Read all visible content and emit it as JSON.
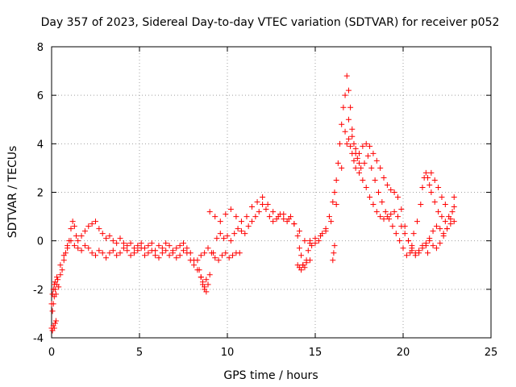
{
  "chart_data": {
    "type": "scatter",
    "title": "Day 357 of 2023, Sidereal Day-to-day VTEC variation (SDTVAR) for receiver p052",
    "xlabel": "GPS time / hours",
    "ylabel": "SDTVAR / TECUs",
    "xlim": [
      0,
      25
    ],
    "ylim": [
      -4,
      8
    ],
    "xticks": [
      0,
      5,
      10,
      15,
      20,
      25
    ],
    "yticks": [
      -4,
      -2,
      0,
      2,
      4,
      6,
      8
    ],
    "grid": true,
    "marker": "+",
    "series": [
      {
        "name": "SDTVAR",
        "color": "#ff0000",
        "x": [
          0.0,
          0.05,
          0.1,
          0.15,
          0.2,
          0.25,
          0.3,
          0.35,
          0.4,
          0.5,
          0.6,
          0.7,
          0.8,
          0.9,
          1.0,
          1.1,
          1.2,
          1.3,
          1.4,
          1.5,
          1.7,
          1.9,
          2.1,
          2.3,
          2.5,
          2.7,
          2.9,
          3.1,
          3.3,
          3.5,
          3.7,
          3.9,
          4.1,
          4.3,
          4.5,
          4.7,
          4.9,
          5.1,
          5.3,
          5.5,
          5.7,
          5.9,
          6.1,
          6.3,
          6.5,
          6.7,
          6.9,
          7.1,
          7.3,
          7.5,
          7.7,
          7.9,
          8.1,
          8.3,
          8.5,
          8.6,
          8.7,
          8.8,
          8.9,
          9.0,
          9.2,
          9.4,
          9.6,
          9.8,
          10.0,
          10.2,
          10.4,
          10.6,
          10.8,
          11.0,
          11.2,
          11.4,
          11.6,
          11.8,
          12.0,
          12.2,
          12.4,
          12.6,
          12.8,
          13.0,
          13.2,
          13.4,
          13.6,
          13.8,
          14.0,
          14.1,
          14.2,
          14.3,
          14.4,
          14.5,
          14.6,
          14.7,
          14.8,
          15.0,
          15.2,
          15.4,
          15.6,
          15.8,
          16.0,
          16.1,
          16.2,
          16.3,
          16.4,
          16.5,
          16.6,
          16.7,
          16.8,
          16.9,
          17.0,
          17.1,
          17.2,
          17.3,
          17.4,
          17.5,
          17.6,
          17.8,
          18.0,
          18.2,
          18.4,
          18.6,
          18.8,
          19.0,
          19.2,
          19.4,
          19.6,
          19.8,
          20.0,
          20.2,
          20.4,
          20.5,
          20.6,
          20.8,
          21.0,
          21.1,
          21.2,
          21.3,
          21.4,
          21.5,
          21.6,
          21.8,
          22.0,
          22.2,
          22.4,
          22.6,
          22.8,
          22.9,
          0.05,
          0.1,
          0.15,
          0.2,
          0.3,
          0.5,
          0.7,
          0.9,
          1.1,
          1.3,
          1.5,
          1.7,
          1.9,
          2.1,
          2.3,
          2.5,
          2.7,
          2.9,
          3.1,
          3.3,
          3.5,
          3.7,
          3.9,
          4.1,
          4.3,
          4.5,
          4.7,
          4.9,
          5.1,
          5.3,
          5.5,
          5.7,
          5.9,
          6.1,
          6.3,
          6.5,
          6.7,
          6.9,
          7.1,
          7.3,
          7.5,
          7.7,
          7.9,
          8.1,
          8.3,
          8.5,
          8.7,
          8.9,
          9.1,
          9.3,
          9.5,
          9.7,
          9.9,
          10.1,
          10.3,
          10.5,
          10.7,
          9.0,
          9.3,
          9.6,
          9.9,
          10.2,
          10.5,
          10.8,
          11.1,
          11.4,
          11.7,
          12.0,
          12.3,
          12.6,
          12.9,
          13.2,
          13.5,
          13.8,
          14.1,
          14.4,
          14.7,
          15.0,
          15.3,
          15.6,
          15.9,
          16.2,
          16.5,
          16.7,
          16.9,
          17.1,
          17.3,
          17.5,
          17.7,
          17.9,
          18.1,
          18.3,
          18.5,
          18.7,
          18.9,
          19.1,
          19.3,
          19.5,
          19.7,
          19.9,
          20.1,
          20.3,
          20.5,
          20.7,
          20.9,
          21.1,
          21.3,
          21.5,
          21.7,
          21.9,
          22.1,
          22.3,
          22.5,
          22.7,
          22.9,
          16.8,
          16.9,
          17.0,
          17.1,
          17.2,
          17.3,
          17.5,
          17.7,
          17.9,
          18.1,
          18.3,
          18.5,
          18.7,
          18.9,
          19.1,
          19.3,
          19.5,
          19.7,
          19.9,
          20.1,
          20.3,
          20.5,
          20.7,
          20.9,
          21.1,
          21.3,
          21.5,
          21.7,
          21.9,
          22.1,
          22.3,
          22.5,
          22.7,
          22.9,
          16.0,
          16.05,
          16.1,
          8.4,
          8.5,
          8.6,
          8.7,
          8.8,
          0.0,
          0.05,
          0.1,
          0.15,
          0.2,
          0.25,
          14.0,
          14.1,
          14.2,
          14.3,
          14.5,
          14.7,
          21.4,
          21.6,
          21.8,
          22.0,
          22.2,
          22.4
        ],
        "y": [
          -2.6,
          -2.9,
          -2.6,
          -2.3,
          -2.0,
          -2.2,
          -1.8,
          -1.6,
          -1.9,
          -1.4,
          -1.2,
          -0.8,
          -0.5,
          -0.2,
          0.0,
          0.5,
          0.8,
          0.6,
          0.2,
          0.0,
          0.2,
          0.4,
          0.6,
          0.7,
          0.8,
          0.5,
          0.3,
          0.1,
          0.2,
          0.0,
          -0.1,
          0.1,
          -0.1,
          -0.2,
          -0.1,
          -0.3,
          -0.2,
          -0.1,
          -0.3,
          -0.2,
          -0.1,
          -0.4,
          -0.2,
          -0.3,
          -0.1,
          -0.2,
          -0.4,
          -0.3,
          -0.2,
          -0.1,
          -0.3,
          -0.5,
          -0.8,
          -1.2,
          -1.5,
          -1.7,
          -1.9,
          -2.1,
          -1.8,
          -1.4,
          -0.5,
          0.1,
          0.3,
          0.1,
          0.2,
          0.0,
          0.3,
          0.5,
          0.4,
          0.3,
          0.6,
          0.8,
          1.0,
          1.2,
          1.5,
          1.3,
          1.0,
          0.8,
          0.9,
          1.1,
          0.9,
          0.8,
          1.0,
          0.7,
          0.2,
          -0.3,
          -0.6,
          -1.0,
          -1.1,
          -0.8,
          -0.4,
          0.0,
          -0.2,
          -0.1,
          0.0,
          0.3,
          0.5,
          1.0,
          1.6,
          2.0,
          2.5,
          3.2,
          4.0,
          4.8,
          5.5,
          6.0,
          6.8,
          6.2,
          5.5,
          4.6,
          4.0,
          3.6,
          3.4,
          3.2,
          3.0,
          3.2,
          3.5,
          3.0,
          2.5,
          2.0,
          1.6,
          1.2,
          0.9,
          0.6,
          0.3,
          0.0,
          -0.3,
          -0.6,
          -0.5,
          -0.2,
          0.3,
          0.8,
          1.5,
          2.2,
          2.6,
          2.8,
          2.6,
          2.3,
          2.0,
          1.6,
          1.2,
          1.0,
          0.8,
          1.0,
          1.2,
          1.4,
          -2.2,
          -2.0,
          -1.8,
          -1.7,
          -1.5,
          -1.0,
          -0.6,
          -0.3,
          0.0,
          -0.2,
          -0.3,
          -0.4,
          -0.2,
          -0.3,
          -0.5,
          -0.6,
          -0.4,
          -0.5,
          -0.7,
          -0.5,
          -0.4,
          -0.6,
          -0.5,
          -0.3,
          -0.4,
          -0.6,
          -0.5,
          -0.4,
          -0.3,
          -0.6,
          -0.5,
          -0.4,
          -0.6,
          -0.7,
          -0.5,
          -0.4,
          -0.6,
          -0.5,
          -0.7,
          -0.6,
          -0.4,
          -0.5,
          -0.8,
          -1.0,
          -0.8,
          -0.6,
          -0.5,
          -0.3,
          -0.5,
          -0.7,
          -0.8,
          -0.6,
          -0.5,
          -0.7,
          -0.6,
          -0.5,
          -0.5,
          1.2,
          1.0,
          0.8,
          1.1,
          1.3,
          1.0,
          0.8,
          1.0,
          1.4,
          1.6,
          1.8,
          1.5,
          1.2,
          1.0,
          1.1,
          0.9,
          0.7,
          0.4,
          0.0,
          -0.1,
          0.1,
          0.2,
          0.4,
          0.8,
          1.5,
          3.0,
          4.5,
          5.0,
          4.3,
          3.8,
          3.6,
          3.9,
          4.0,
          3.9,
          3.6,
          3.3,
          3.0,
          2.6,
          2.3,
          2.1,
          2.0,
          1.8,
          1.3,
          0.6,
          0.0,
          -0.3,
          -0.5,
          -0.4,
          -0.2,
          -0.1,
          0.0,
          -0.2,
          -0.3,
          -0.1,
          0.2,
          0.5,
          0.9,
          1.8,
          4.0,
          4.2,
          3.9,
          3.6,
          3.3,
          3.0,
          2.8,
          2.5,
          2.2,
          1.8,
          1.5,
          1.2,
          1.0,
          0.9,
          1.0,
          1.1,
          1.2,
          1.0,
          0.6,
          0.3,
          0.0,
          -0.4,
          -0.6,
          -0.5,
          -0.3,
          -0.2,
          0.1,
          0.4,
          0.6,
          0.5,
          0.3,
          0.5,
          0.7,
          0.8,
          -0.8,
          -0.5,
          -0.2,
          -1.2,
          -1.5,
          -1.8,
          -2.0,
          -1.6,
          -3.6,
          -3.7,
          -3.5,
          -3.6,
          -3.4,
          -3.3,
          -1.0,
          -1.1,
          -1.2,
          -1.0,
          -0.9,
          -0.8,
          -0.5,
          2.8,
          2.5,
          2.2,
          1.8,
          1.5
        ]
      }
    ]
  }
}
